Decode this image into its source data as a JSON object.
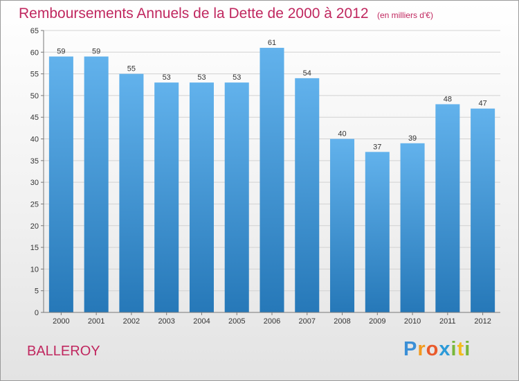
{
  "title": "Remboursements Annuels de la Dette de 2000 à 2012",
  "subtitle": "(en milliers d'€)",
  "town": "BALLEROY",
  "logo": {
    "letters": [
      {
        "ch": "P",
        "color": "#3b8fd6"
      },
      {
        "ch": "r",
        "color": "#f29a1f"
      },
      {
        "ch": "o",
        "color": "#ea5a2b"
      },
      {
        "ch": "x",
        "color": "#2c9ad8"
      },
      {
        "ch": "i",
        "color": "#78b73a"
      },
      {
        "ch": "t",
        "color": "#f3bb1d"
      },
      {
        "ch": "i",
        "color": "#78b73a"
      }
    ]
  },
  "colors": {
    "title": "#c0275f",
    "bar_top": "#62b2ec",
    "bar_bottom": "#2678b8",
    "axis": "#777777",
    "grid": "#d2d2d2"
  },
  "chart_data": {
    "type": "bar",
    "categories": [
      "2000",
      "2001",
      "2002",
      "2003",
      "2004",
      "2005",
      "2006",
      "2007",
      "2008",
      "2009",
      "2010",
      "2011",
      "2012"
    ],
    "values": [
      59,
      59,
      55,
      53,
      53,
      53,
      61,
      54,
      40,
      37,
      39,
      48,
      47
    ],
    "ylim": [
      0,
      65
    ],
    "yticks": [
      0,
      5,
      10,
      15,
      20,
      25,
      30,
      35,
      40,
      45,
      50,
      55,
      60,
      65
    ],
    "grid": true,
    "xlabel": "",
    "ylabel": ""
  }
}
